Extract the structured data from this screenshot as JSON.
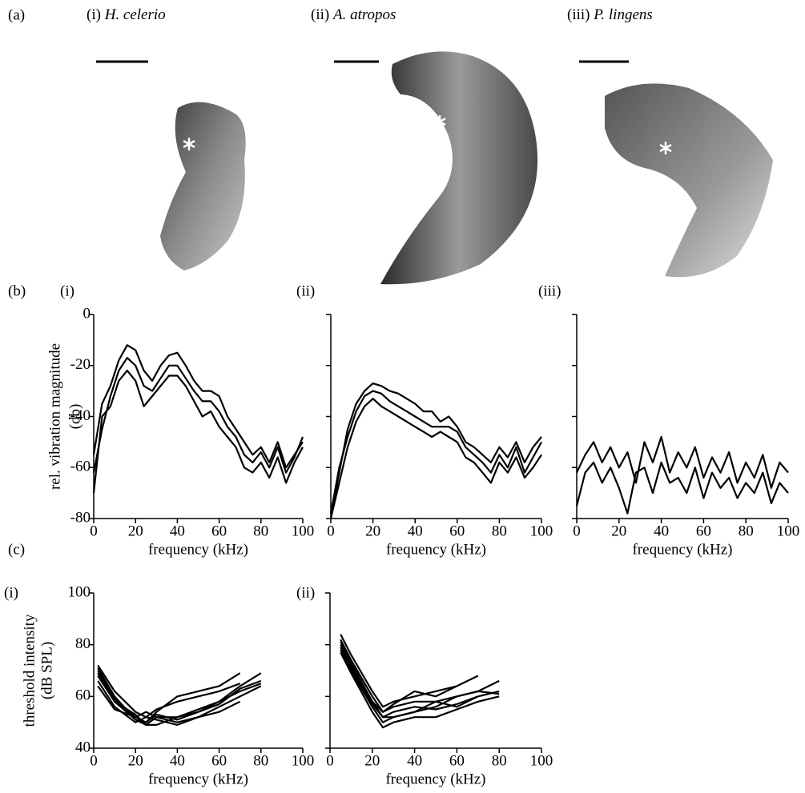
{
  "panel_labels": [
    "(a)",
    "(b)",
    "(c)"
  ],
  "species": [
    {
      "numeral": "(i)",
      "name": "H. celerio"
    },
    {
      "numeral": "(ii)",
      "name": "A. atropos"
    },
    {
      "numeral": "(iii)",
      "name": "P. lingens"
    }
  ],
  "chart_data": [
    {
      "type": "line",
      "panel": "(i)",
      "xlabel": "frequency (kHz)",
      "ylabel": [
        "rel. vibration magnitude",
        "(db)"
      ],
      "x": [
        0,
        4,
        8,
        12,
        16,
        20,
        24,
        28,
        32,
        36,
        40,
        44,
        48,
        52,
        56,
        60,
        64,
        68,
        72,
        76,
        80,
        84,
        88,
        92,
        96,
        100
      ],
      "series": [
        {
          "color": "#000000",
          "values": [
            -55,
            -35,
            -28,
            -18,
            -12,
            -14,
            -22,
            -26,
            -20,
            -16,
            -15,
            -20,
            -26,
            -30,
            -30,
            -32,
            -40,
            -45,
            -50,
            -55,
            -52,
            -58,
            -50,
            -60,
            -55,
            -50
          ]
        },
        {
          "color": "#000000",
          "values": [
            -62,
            -45,
            -32,
            -22,
            -17,
            -20,
            -28,
            -30,
            -25,
            -20,
            -20,
            -25,
            -30,
            -34,
            -34,
            -38,
            -44,
            -48,
            -55,
            -58,
            -54,
            -60,
            -52,
            -62,
            -56,
            -48
          ]
        },
        {
          "color": "#000000",
          "values": [
            -70,
            -40,
            -36,
            -26,
            -22,
            -26,
            -36,
            -32,
            -28,
            -24,
            -24,
            -28,
            -34,
            -40,
            -38,
            -44,
            -48,
            -52,
            -60,
            -62,
            -58,
            -64,
            -56,
            -66,
            -58,
            -52
          ]
        }
      ],
      "xlim": [
        0,
        100
      ],
      "ylim": [
        -80,
        0
      ],
      "xticks": [
        0,
        20,
        40,
        60,
        80,
        100
      ],
      "yticks": [
        -80,
        -60,
        -40,
        -20,
        0
      ],
      "show_ytick_labels": true
    },
    {
      "type": "line",
      "panel": "(ii)",
      "xlabel": "frequency (kHz)",
      "x": [
        0,
        4,
        8,
        12,
        16,
        20,
        24,
        28,
        32,
        36,
        40,
        44,
        48,
        52,
        56,
        60,
        64,
        68,
        72,
        76,
        80,
        84,
        88,
        92,
        96,
        100
      ],
      "series": [
        {
          "color": "#000000",
          "values": [
            -80,
            -62,
            -45,
            -35,
            -30,
            -27,
            -28,
            -30,
            -31,
            -33,
            -35,
            -38,
            -38,
            -42,
            -40,
            -44,
            -50,
            -52,
            -55,
            -58,
            -52,
            -56,
            -50,
            -58,
            -52,
            -48
          ]
        },
        {
          "color": "#000000",
          "values": [
            -78,
            -60,
            -48,
            -38,
            -32,
            -30,
            -31,
            -34,
            -36,
            -38,
            -40,
            -42,
            -44,
            -44,
            -44,
            -46,
            -52,
            -55,
            -58,
            -62,
            -55,
            -60,
            -52,
            -62,
            -56,
            -50
          ]
        },
        {
          "color": "#000000",
          "values": [
            -80,
            -66,
            -52,
            -42,
            -36,
            -33,
            -36,
            -38,
            -40,
            -42,
            -44,
            -46,
            -48,
            -46,
            -48,
            -50,
            -56,
            -58,
            -62,
            -66,
            -58,
            -62,
            -56,
            -64,
            -60,
            -55
          ]
        }
      ],
      "xlim": [
        0,
        100
      ],
      "ylim": [
        -80,
        0
      ],
      "xticks": [
        0,
        20,
        40,
        60,
        80,
        100
      ],
      "yticks": [
        -80,
        -60,
        -40,
        -20,
        0
      ],
      "show_ytick_labels": false
    },
    {
      "type": "line",
      "panel": "(iii)",
      "xlabel": "frequency (kHz)",
      "x": [
        0,
        4,
        8,
        12,
        16,
        20,
        24,
        28,
        32,
        36,
        40,
        44,
        48,
        52,
        56,
        60,
        64,
        68,
        72,
        76,
        80,
        84,
        88,
        92,
        96,
        100
      ],
      "series": [
        {
          "color": "#000000",
          "values": [
            -62,
            -55,
            -50,
            -58,
            -52,
            -60,
            -54,
            -66,
            -50,
            -58,
            -48,
            -62,
            -54,
            -60,
            -52,
            -64,
            -56,
            -62,
            -54,
            -66,
            -58,
            -64,
            -55,
            -68,
            -58,
            -62
          ]
        },
        {
          "color": "#000000",
          "values": [
            -75,
            -62,
            -58,
            -66,
            -60,
            -68,
            -78,
            -62,
            -60,
            -70,
            -58,
            -66,
            -64,
            -70,
            -60,
            -72,
            -62,
            -68,
            -64,
            -72,
            -66,
            -70,
            -62,
            -74,
            -66,
            -70
          ]
        }
      ],
      "xlim": [
        0,
        100
      ],
      "ylim": [
        -80,
        0
      ],
      "xticks": [
        0,
        20,
        40,
        60,
        80,
        100
      ],
      "yticks": [
        -80,
        -60,
        -40,
        -20,
        0
      ],
      "show_ytick_labels": false
    },
    {
      "type": "line",
      "panel": "(i)",
      "xlabel": "frequency (kHz)",
      "ylabel": [
        "threshold intensity",
        "(dB SPL)"
      ],
      "x": [
        2,
        10,
        20,
        25,
        30,
        40,
        50,
        60,
        70,
        80
      ],
      "series": [
        {
          "color": "#000000",
          "values": [
            71,
            60,
            51,
            50,
            54,
            60,
            62,
            64,
            69,
            null
          ]
        },
        {
          "color": "#000000",
          "values": [
            70,
            59,
            52,
            54,
            52,
            52,
            55,
            58,
            64,
            69
          ]
        },
        {
          "color": "#000000",
          "values": [
            68,
            58,
            51,
            49,
            49,
            52,
            54,
            57,
            63,
            66
          ]
        },
        {
          "color": "#000000",
          "values": [
            72,
            62,
            54,
            52,
            55,
            58,
            60,
            62,
            65,
            null
          ]
        },
        {
          "color": "#000000",
          "values": [
            66,
            56,
            50,
            52,
            51,
            49,
            52,
            56,
            60,
            64
          ]
        },
        {
          "color": "#000000",
          "values": [
            64,
            55,
            52,
            50,
            53,
            51,
            54,
            58,
            62,
            65
          ]
        },
        {
          "color": "#000000",
          "values": [
            69,
            58,
            53,
            49,
            52,
            50,
            52,
            54,
            58,
            null
          ]
        }
      ],
      "xlim": [
        0,
        100
      ],
      "ylim": [
        40,
        100
      ],
      "xticks": [
        0,
        20,
        40,
        60,
        80,
        100
      ],
      "yticks": [
        40,
        60,
        80,
        100
      ],
      "show_ytick_labels": true
    },
    {
      "type": "line",
      "panel": "(ii)",
      "xlabel": "frequency (kHz)",
      "x": [
        5,
        10,
        20,
        25,
        30,
        40,
        50,
        60,
        70,
        80
      ],
      "series": [
        {
          "color": "#000000",
          "values": [
            84,
            76,
            62,
            56,
            58,
            60,
            62,
            64,
            68,
            null
          ]
        },
        {
          "color": "#000000",
          "values": [
            82,
            74,
            60,
            54,
            56,
            58,
            58,
            60,
            62,
            66
          ]
        },
        {
          "color": "#000000",
          "values": [
            80,
            72,
            58,
            52,
            54,
            56,
            55,
            57,
            60,
            62
          ]
        },
        {
          "color": "#000000",
          "values": [
            78,
            70,
            56,
            50,
            52,
            54,
            56,
            60,
            62,
            61
          ]
        },
        {
          "color": "#000000",
          "values": [
            77,
            69,
            54,
            48,
            50,
            52,
            52,
            55,
            58,
            60
          ]
        },
        {
          "color": "#000000",
          "values": [
            81,
            73,
            58,
            54,
            57,
            62,
            60,
            64,
            null,
            null
          ]
        },
        {
          "color": "#000000",
          "values": [
            79,
            71,
            57,
            52,
            52,
            54,
            58,
            56,
            60,
            null
          ]
        }
      ],
      "xlim": [
        0,
        100
      ],
      "ylim": [
        40,
        100
      ],
      "xticks": [
        0,
        20,
        40,
        60,
        80,
        100
      ],
      "yticks": [
        40,
        60,
        80,
        100
      ],
      "show_ytick_labels": false
    }
  ]
}
